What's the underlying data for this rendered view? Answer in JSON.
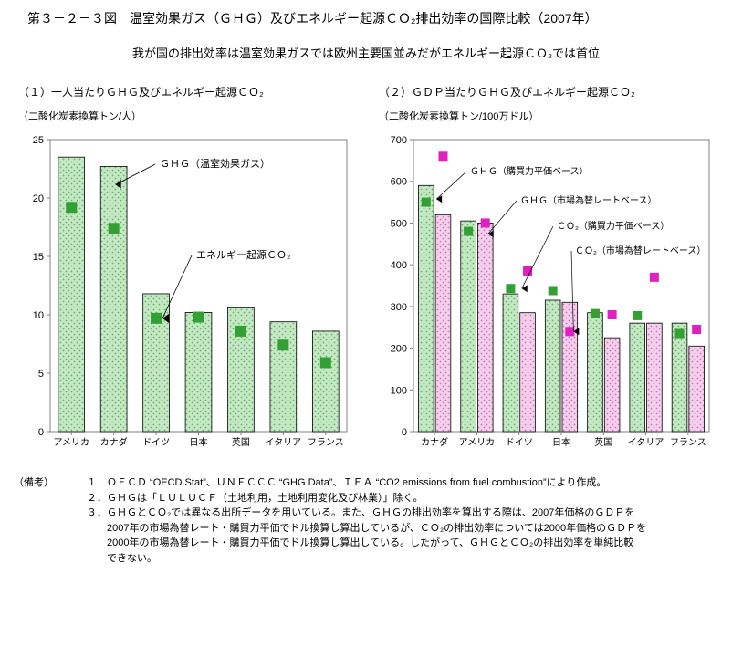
{
  "title": "第３－２－３図　温室効果ガス（ＧＨＧ）及びエネルギー起源ＣＯ₂排出効率の国際比較（2007年）",
  "subtitle": "我が国の排出効率は温室効果ガスでは欧州主要国並みだがエネルギー起源ＣＯ₂では首位",
  "chart1": {
    "heading": "（１）一人当たりＧＨＧ及びエネルギー起源ＣＯ₂",
    "unit": "（二酸化炭素換算トン/人）",
    "type": "bar",
    "categories": [
      "アメリカ",
      "カナダ",
      "ドイツ",
      "日本",
      "英国",
      "イタリア",
      "フランス"
    ],
    "ghg_values": [
      23.5,
      22.7,
      11.8,
      10.2,
      10.6,
      9.4,
      8.6
    ],
    "co2_values": [
      19.2,
      17.4,
      9.7,
      9.8,
      8.6,
      7.4,
      5.9
    ],
    "ylim": [
      0,
      25
    ],
    "ytick_step": 5,
    "bar_fill": "#c5e8c5",
    "bar_dot": "#66b266",
    "bar_border": "#000000",
    "co2_fill": "#33a033",
    "plot_bg": "#ffffff",
    "plot_border": "#808080",
    "anno_ghg": "ＧＨＧ（温室効果ガス）",
    "anno_co2": "エネルギー起源ＣＯ₂"
  },
  "chart2": {
    "heading": "（２）ＧＤＰ当たりＧＨＧ及びエネルギー起源ＣＯ₂",
    "unit": "（二酸化炭素換算トン/100万ドル）",
    "type": "grouped-bar",
    "categories": [
      "カナダ",
      "アメリカ",
      "ドイツ",
      "日本",
      "英国",
      "イタリア",
      "フランス"
    ],
    "ghg_ppp": [
      590,
      505,
      330,
      315,
      285,
      260,
      260
    ],
    "ghg_mkt": [
      520,
      500,
      285,
      310,
      225,
      260,
      205
    ],
    "co2_ppp": [
      550,
      480,
      343,
      338,
      283,
      278,
      235
    ],
    "co2_mkt": [
      660,
      500,
      385,
      240,
      280,
      370,
      245
    ],
    "ylim": [
      0,
      700
    ],
    "ytick_step": 100,
    "bar1_fill": "#c5e8c5",
    "bar1_dot": "#66b266",
    "bar2_fill": "#f5d0ec",
    "bar2_dot": "#d070c0",
    "bar_border": "#000000",
    "mark1_fill": "#33a033",
    "mark2_fill": "#e020c0",
    "plot_bg": "#ffffff",
    "plot_border": "#808080",
    "anno_ghg_ppp": "ＧＨＧ（購買力平価ベース）",
    "anno_ghg_mkt": "ＧＨＧ（市場為替レートベース）",
    "anno_co2_ppp": "ＣＯ₂（購買力平価ベース）",
    "anno_co2_mkt": "ＣＯ₂（市場為替レートベース）"
  },
  "notes": {
    "lead": "（備考）",
    "lines": [
      "１．ＯＥＣＤ “OECD.Stat”、ＵＮＦＣＣＣ “GHG Data”、ＩＥＡ “CO2 emissions from fuel combustion”により作成。",
      "２．ＧＨＧは「ＬＵＬＵＣＦ（土地利用，土地利用変化及び林業）」除く。",
      "３．ＧＨＧとＣＯ₂では異なる出所データを用いている。また、ＧＨＧの排出効率を算出する際は、2007年価格のＧＤＰを",
      "　　2007年の市場為替レート・購買力平価でドル換算し算出しているが、ＣＯ₂の排出効率については2000年価格のＧＤＰを",
      "　　2000年の市場為替レート・購買力平価でドル換算し算出している。したがって、ＧＨＧとＣＯ₂の排出効率を単純比較",
      "　　できない。"
    ]
  }
}
